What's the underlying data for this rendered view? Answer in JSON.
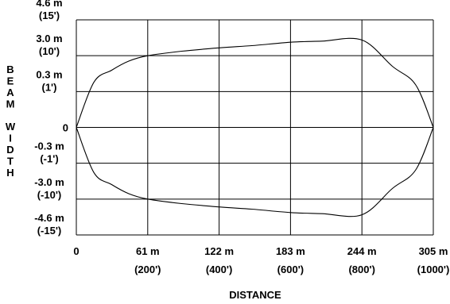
{
  "chart_data": {
    "type": "line",
    "xlabel": "DISTANCE",
    "ylabel": "BEAM WIDTH",
    "ylabel_words": [
      "BEAM",
      "WIDTH"
    ],
    "x_ticks": [
      {
        "value": 0,
        "label": "0",
        "sublabel": ""
      },
      {
        "value": 61,
        "label": "61 m",
        "sublabel": "(200')"
      },
      {
        "value": 122,
        "label": "122 m",
        "sublabel": "(400')"
      },
      {
        "value": 183,
        "label": "183 m",
        "sublabel": "(600')"
      },
      {
        "value": 244,
        "label": "244 m",
        "sublabel": "(800')"
      },
      {
        "value": 305,
        "label": "305 m",
        "sublabel": "(1000')"
      }
    ],
    "y_ticks": [
      {
        "value": 4.6,
        "label": "4.6 m",
        "sublabel": "(15')"
      },
      {
        "value": 3.0,
        "label": "3.0 m",
        "sublabel": "(10')"
      },
      {
        "value": 0.3,
        "label": "0.3 m",
        "sublabel": "(1')"
      },
      {
        "value": 0,
        "label": "0",
        "sublabel": ""
      },
      {
        "value": -0.3,
        "label": "-0.3 m",
        "sublabel": "(-1')"
      },
      {
        "value": -3.0,
        "label": "-3.0 m",
        "sublabel": "(-10')"
      },
      {
        "value": -4.6,
        "label": "-4.6 m",
        "sublabel": "(-15')"
      }
    ],
    "xlim": [
      0,
      305
    ],
    "grid": true,
    "series": [
      {
        "x": [
          0,
          15,
          30,
          45,
          61,
          90,
          122,
          150,
          183,
          210,
          244,
          270,
          290,
          305
        ],
        "y": [
          0,
          1.0,
          1.9,
          2.6,
          3.0,
          3.2,
          3.35,
          3.45,
          3.6,
          3.65,
          3.7,
          2.2,
          0.8,
          0
        ]
      },
      {
        "x": [
          0,
          15,
          30,
          45,
          61,
          90,
          122,
          150,
          183,
          210,
          244,
          270,
          290,
          305
        ],
        "y": [
          0,
          -1.0,
          -1.9,
          -2.6,
          -3.0,
          -3.2,
          -3.35,
          -3.45,
          -3.6,
          -3.65,
          -3.7,
          -2.2,
          -0.8,
          0
        ]
      }
    ]
  }
}
